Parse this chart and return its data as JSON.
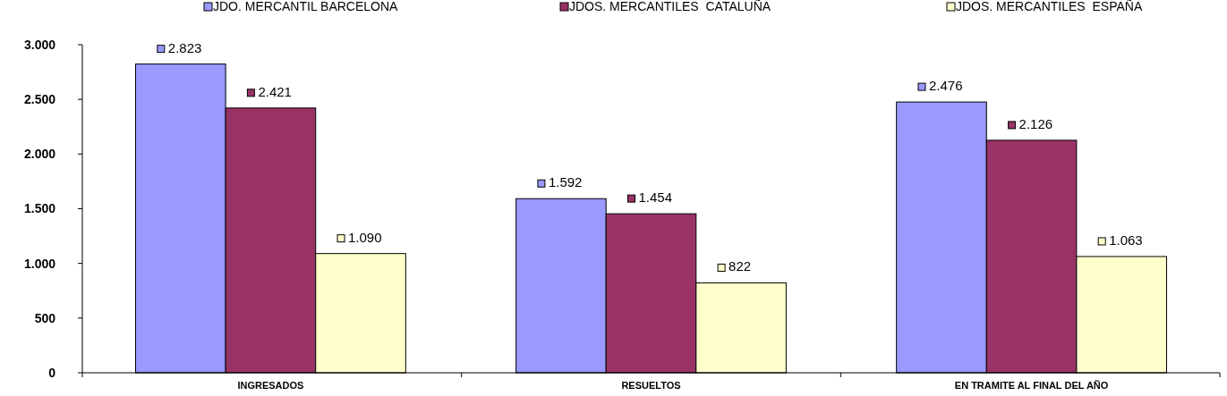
{
  "chart_data": {
    "type": "bar",
    "categories": [
      "INGRESADOS",
      "RESUELTOS",
      "EN TRAMITE AL FINAL DEL AÑO"
    ],
    "series": [
      {
        "name": "JDO. MERCANTIL BARCELONA",
        "color": "#9999ff",
        "values": [
          2823,
          1592,
          2476
        ],
        "value_labels": [
          "2.823",
          "1.592",
          "2.476"
        ]
      },
      {
        "name": "JDOS. MERCANTILES  CATALUÑA",
        "color": "#993366",
        "values": [
          2421,
          1454,
          2126
        ],
        "value_labels": [
          "2.421",
          "1.454",
          "2.126"
        ]
      },
      {
        "name": "JDOS. MERCANTILES  ESPAÑA",
        "color": "#ffffcc",
        "values": [
          1090,
          822,
          1063
        ],
        "value_labels": [
          "1.090",
          "822",
          "1.063"
        ]
      }
    ],
    "ylim": [
      0,
      3000
    ],
    "yticks": [
      {
        "value": 0,
        "label": "0"
      },
      {
        "value": 500,
        "label": "500"
      },
      {
        "value": 1000,
        "label": "1.000"
      },
      {
        "value": 1500,
        "label": "1.500"
      },
      {
        "value": 2000,
        "label": "2.000"
      },
      {
        "value": 2500,
        "label": "2.500"
      },
      {
        "value": 3000,
        "label": "3.000"
      }
    ],
    "grid": false,
    "legend": "top"
  }
}
